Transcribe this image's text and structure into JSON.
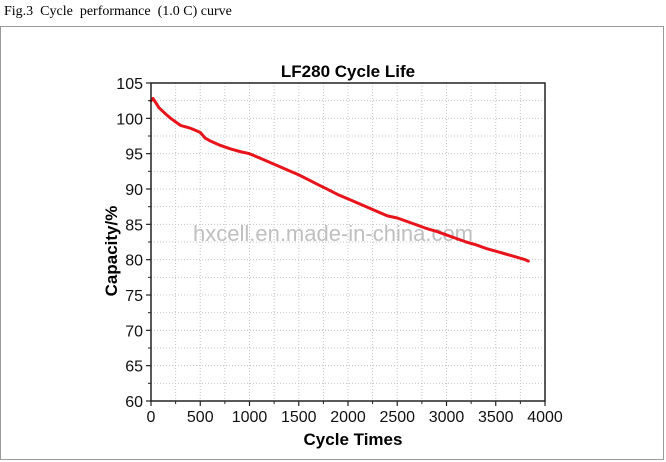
{
  "caption": "Fig.3  Cycle  performance  (1.0 C) curve",
  "watermark": "hxcell.en.made-in-china.com",
  "chart_data": {
    "type": "line",
    "title": "LF280 Cycle Life",
    "xlabel": "Cycle Times",
    "ylabel": "Capacity/%",
    "xlim": [
      0,
      4000
    ],
    "ylim": [
      60,
      105
    ],
    "xticks": [
      0,
      500,
      1000,
      1500,
      2000,
      2500,
      3000,
      3500,
      4000
    ],
    "yticks": [
      60,
      65,
      70,
      75,
      80,
      85,
      90,
      95,
      100,
      105
    ],
    "grid": true,
    "legend": "none",
    "series_color": "#e8141b",
    "series": [
      {
        "x": [
          0,
          20,
          50,
          80,
          120,
          150,
          200,
          250,
          300,
          350,
          400,
          450,
          500,
          550,
          600,
          700,
          800,
          900,
          1000,
          1100,
          1200,
          1300,
          1400,
          1500,
          1600,
          1700,
          1800,
          1900,
          2000,
          2100,
          2200,
          2300,
          2400,
          2500,
          2600,
          2700,
          2800,
          2900,
          3000,
          3100,
          3200,
          3300,
          3400,
          3500,
          3600,
          3700,
          3800,
          3830
        ],
        "y": [
          102.5,
          102.8,
          102.2,
          101.5,
          101.0,
          100.6,
          100.0,
          99.5,
          99.0,
          98.8,
          98.6,
          98.3,
          98.0,
          97.2,
          96.8,
          96.2,
          95.7,
          95.3,
          95.0,
          94.4,
          93.8,
          93.2,
          92.6,
          92.0,
          91.3,
          90.6,
          89.9,
          89.2,
          88.6,
          88.0,
          87.4,
          86.8,
          86.2,
          85.9,
          85.4,
          84.9,
          84.4,
          84.0,
          83.5,
          83.0,
          82.5,
          82.1,
          81.6,
          81.2,
          80.8,
          80.4,
          80.0,
          79.8
        ]
      }
    ]
  }
}
